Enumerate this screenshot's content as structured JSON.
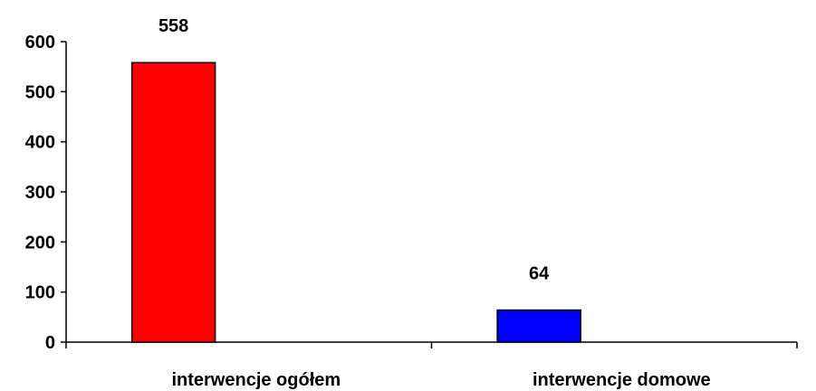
{
  "chart_data": {
    "type": "bar",
    "categories": [
      "interwencje ogółem",
      "interwencje domowe"
    ],
    "values": [
      558,
      64
    ],
    "colors": [
      "#ff0000",
      "#0000ff"
    ],
    "data_labels": [
      "558",
      "64"
    ],
    "ylim": [
      0,
      600
    ],
    "yticks": [
      0,
      100,
      200,
      300,
      400,
      500,
      600
    ],
    "title": "",
    "xlabel": "",
    "ylabel": "",
    "grid": false,
    "legend": "none"
  }
}
